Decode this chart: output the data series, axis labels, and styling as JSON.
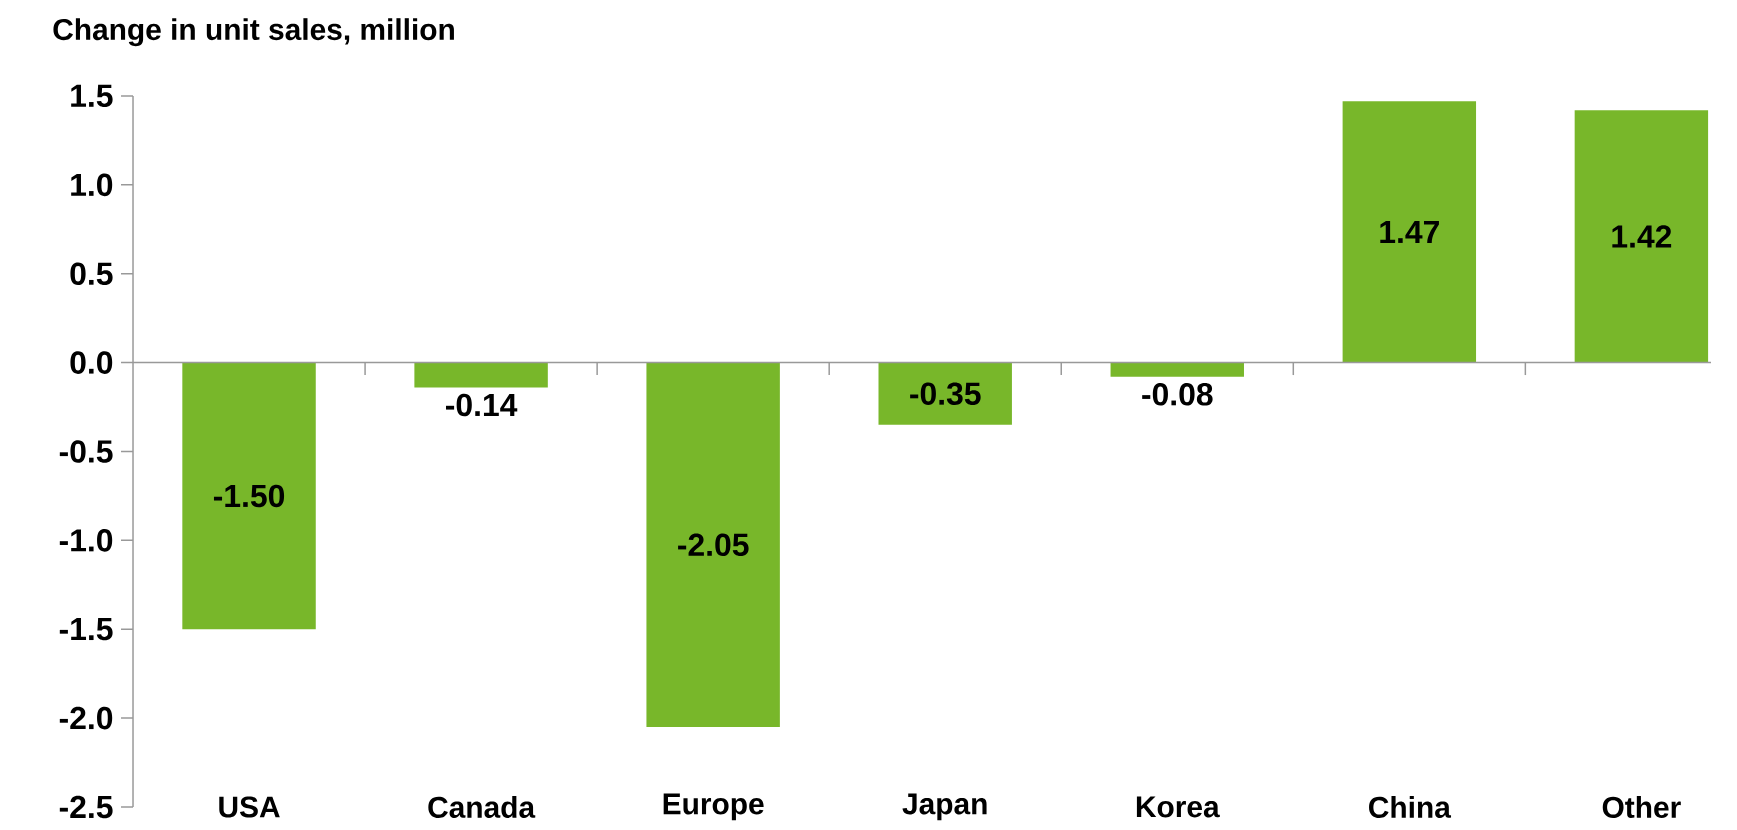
{
  "chart_data": {
    "type": "bar",
    "ylabel": "Change in unit sales, million",
    "categories": [
      "USA",
      "Canada",
      "Europe",
      "Japan",
      "Korea",
      "China",
      "Other"
    ],
    "values": [
      -1.5,
      -0.14,
      -2.05,
      -0.35,
      -0.08,
      1.47,
      1.42
    ],
    "value_labels": [
      "-1.50",
      "-0.14",
      "-2.05",
      "-0.35",
      "-0.08",
      "1.47",
      "1.42"
    ],
    "color": "#78b72a",
    "ylim": [
      -2.5,
      1.5
    ],
    "yticks": [
      {
        "value": 1.5,
        "label": "1.5"
      },
      {
        "value": 1.0,
        "label": "1.0"
      },
      {
        "value": 0.5,
        "label": "0.5"
      },
      {
        "value": 0.0,
        "label": "0.0"
      },
      {
        "value": -0.5,
        "label": "-0.5"
      },
      {
        "value": -1.0,
        "label": "-1.0"
      },
      {
        "value": -1.5,
        "label": "-1.5"
      },
      {
        "value": -2.0,
        "label": "-2.0"
      },
      {
        "value": -2.5,
        "label": "-2.5"
      }
    ]
  }
}
